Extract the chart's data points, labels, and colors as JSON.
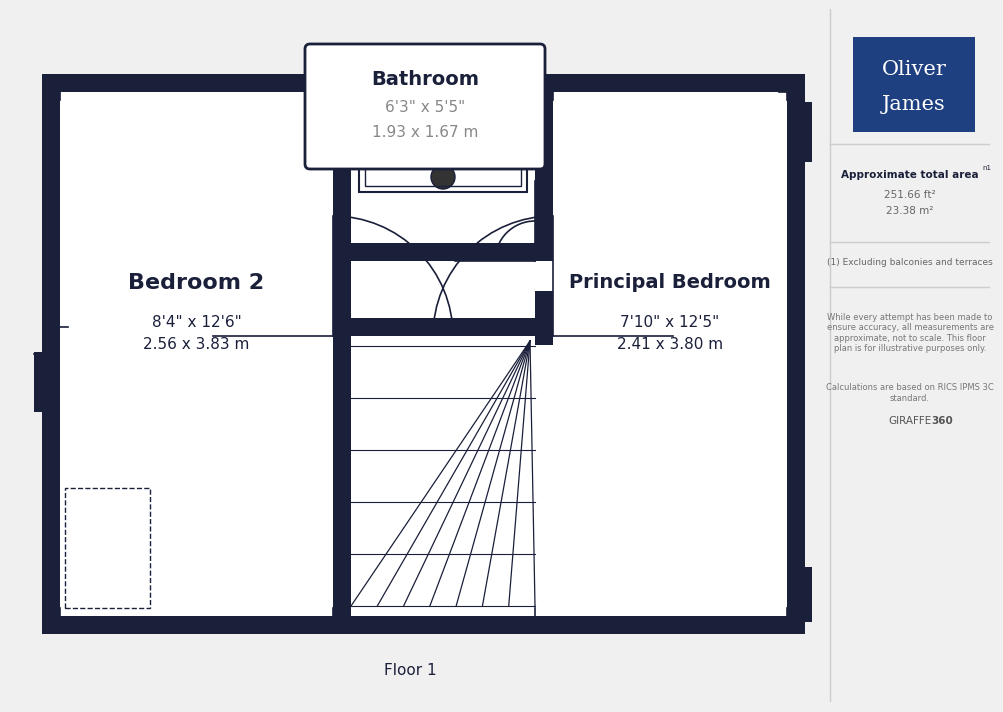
{
  "bg_color": "#f0f0f0",
  "wall_color": "#1a1f3a",
  "floor_color": "#ffffff",
  "title": "Floor 1",
  "logo_text1": "Oliver",
  "logo_text2": "James",
  "logo_bg": "#1e4080",
  "logo_text_color": "#ffffff",
  "bathroom_label": "Bathroom",
  "bathroom_dim1": "6'3\" x 5'5\"",
  "bathroom_dim2": "1.93 x 1.67 m",
  "bedroom2_label": "Bedroom 2",
  "bedroom2_dim1": "8'4\" x 12'6\"",
  "bedroom2_dim2": "2.56 x 3.83 m",
  "principal_label": "Principal Bedroom",
  "principal_dim1": "7'10\" x 12'5\"",
  "principal_dim2": "2.41 x 3.80 m",
  "approx_area_title": "Approximate total area",
  "approx_area_superscript": "n1",
  "approx_area_ft": "251.66 ft²",
  "approx_area_m": "23.38 m²",
  "footnote1": "(1) Excluding balconies and terraces",
  "footnote2": "While every attempt has been made to\nensure accuracy, all measurements are\napproximate, not to scale. This floor\nplan is for illustrative purposes only.",
  "footnote3": "Calculations are based on RICS IPMS 3C\nstandard.",
  "brand": "GIRAFFE",
  "brand_bold": "360",
  "separator_color": "#cccccc",
  "dim_color": "#888888"
}
